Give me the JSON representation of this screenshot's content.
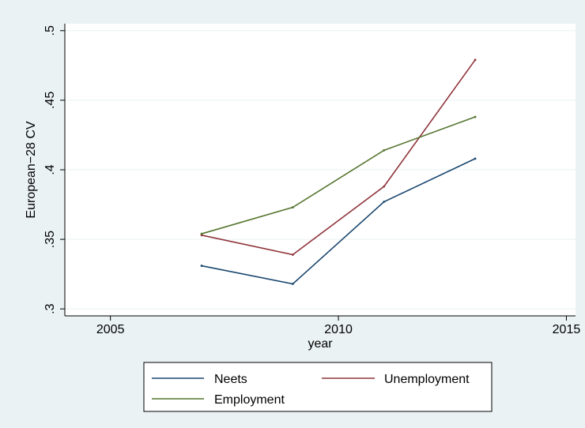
{
  "chart_data": {
    "type": "line",
    "xlabel": "year",
    "ylabel": "European−28 CV",
    "xlim": [
      2004,
      2015.2
    ],
    "ylim": [
      0.295,
      0.505
    ],
    "x_ticks": [
      2005,
      2010,
      2015
    ],
    "x_tick_labels": [
      "2005",
      "2010",
      "2015"
    ],
    "y_ticks": [
      0.3,
      0.35,
      0.4,
      0.45,
      0.5
    ],
    "y_tick_labels": [
      ".3",
      ".35",
      ".4",
      ".45",
      ".5"
    ],
    "grid": true,
    "legend": "bottom",
    "series": [
      {
        "name": "Neets",
        "color": "#1a476f",
        "x": [
          2007,
          2009,
          2011,
          2013
        ],
        "y": [
          0.331,
          0.318,
          0.377,
          0.408
        ]
      },
      {
        "name": "Unemployment",
        "color": "#90353b",
        "x": [
          2007,
          2009,
          2011,
          2013
        ],
        "y": [
          0.353,
          0.339,
          0.388,
          0.479
        ]
      },
      {
        "name": "Employment",
        "color": "#55752f",
        "x": [
          2007,
          2009,
          2011,
          2013
        ],
        "y": [
          0.354,
          0.373,
          0.414,
          0.438
        ]
      }
    ],
    "colors": {
      "background": "#eaf2f3",
      "plot_background": "#ffffff",
      "grid": "#eaf2f3"
    }
  }
}
